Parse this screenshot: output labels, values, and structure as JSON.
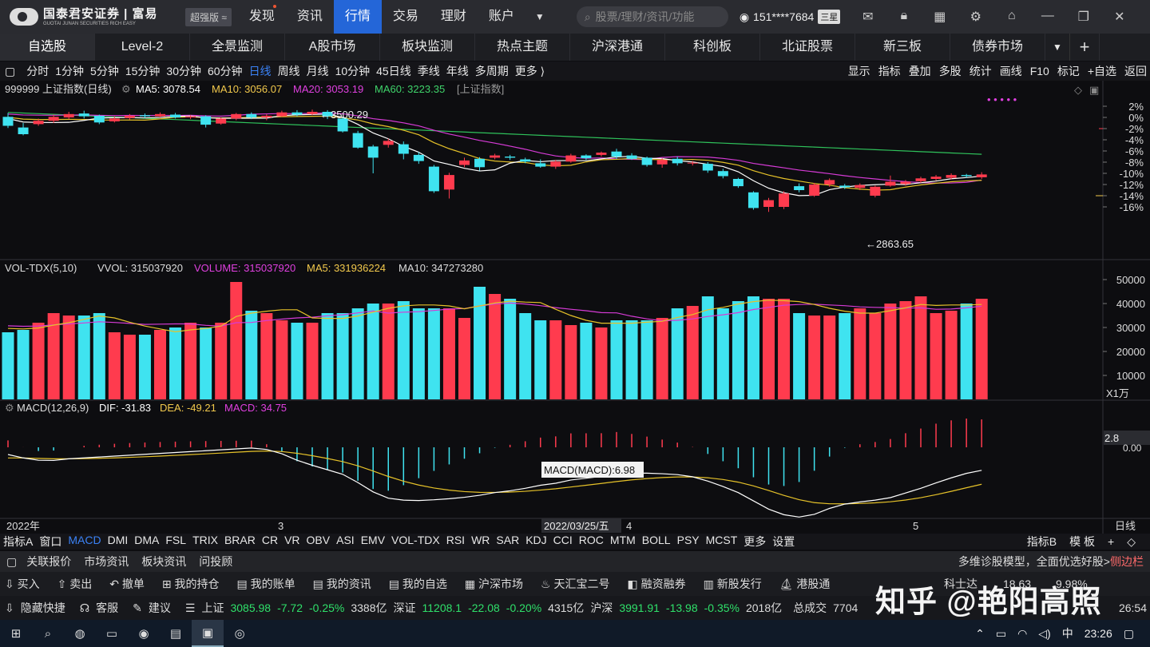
{
  "topbar": {
    "logo_cn": "国泰君安证券 | 富易",
    "logo_en": "GUOTAI JUNAN SECURITIES  RICH EASY",
    "edition": "超强版 ≈",
    "nav": [
      "发现",
      "资讯",
      "行情",
      "交易",
      "理财",
      "账户"
    ],
    "active_nav": 2,
    "search_placeholder": "股票/理财/资讯/功能",
    "user": "151****7684",
    "star": "三星"
  },
  "tabs": [
    "自选股",
    "Level-2",
    "全景监测",
    "A股市场",
    "板块监测",
    "热点主题",
    "沪深港通",
    "科创板",
    "北证股票",
    "新三板",
    "债券市场"
  ],
  "periods": [
    "分时",
    "1分钟",
    "5分钟",
    "15分钟",
    "30分钟",
    "60分钟",
    "日线",
    "周线",
    "月线",
    "10分钟",
    "45日线",
    "季线",
    "年线",
    "多周期",
    "更多 ⟩"
  ],
  "active_period": 6,
  "right_tools": [
    "显示",
    "指标",
    "叠加",
    "多股",
    "统计",
    "画线",
    "F10",
    "标记",
    "+自选",
    "返回"
  ],
  "kline": {
    "legend_code": "999999 上证指数(日线)",
    "ma5": "MA5: 3078.54",
    "ma10": "MA10: 3056.07",
    "ma20": "MA20: 3053.19",
    "ma60": "MA60: 3223.35",
    "tag": "[上证指数]",
    "high_label": "3500.29",
    "low_label": "2863.65",
    "yticks": [
      "2%",
      "0%",
      "-2%",
      "-4%",
      "-6%",
      "-8%",
      "-10%",
      "-12%",
      "-14%",
      "-16%"
    ]
  },
  "volume": {
    "legend": "VOL-TDX(5,10)",
    "vvol": "VVOL: 315037920",
    "volume": "VOLUME: 315037920",
    "ma5": "MA5: 331936224",
    "ma10": "MA10: 347273280",
    "yticks": [
      "50000",
      "40000",
      "30000",
      "20000",
      "10000"
    ],
    "unit": "X1万"
  },
  "macd": {
    "legend": "MACD(12,26,9)",
    "dif": "DIF: -31.83",
    "dea": "DEA: -49.21",
    "macd": "MACD: 34.75",
    "tip": "MACD(MACD):6.98",
    "right_value": "2.8",
    "zero_label": "0.00"
  },
  "xaxis": {
    "year": "2022年",
    "m3": "3",
    "date": "2022/03/25/五",
    "m4": "4",
    "m5": "5",
    "period": "日线"
  },
  "bottom_tabs": [
    "指标A",
    "窗口",
    "MACD",
    "DMI",
    "DMA",
    "FSL",
    "TRIX",
    "BRAR",
    "CR",
    "VR",
    "OBV",
    "ASI",
    "EMV",
    "VOL-TDX",
    "RSI",
    "WR",
    "SAR",
    "KDJ",
    "CCI",
    "ROC",
    "MTM",
    "BOLL",
    "PSY",
    "MCST",
    "更多",
    "设置"
  ],
  "bottom_right": [
    "指标B",
    "模 板"
  ],
  "rowA": [
    "关联报价",
    "市场资讯",
    "板块资讯",
    "问投顾"
  ],
  "rowA_promo": "多维诊股模型，全面优选好股>",
  "rowA_side": "侧边栏",
  "rowB": [
    "买入",
    "卖出",
    "撤单",
    "我的持仓",
    "我的账单",
    "我的资讯",
    "我的自选",
    "沪深市场",
    "天汇宝二号",
    "融资融券",
    "新股发行",
    "港股通"
  ],
  "rowB_stock": [
    "科士达",
    "18.63",
    "9.98%"
  ],
  "status": {
    "hide": "隐藏快捷",
    "service": "客服",
    "suggest": "建议",
    "sh": [
      "上证",
      "3085.98",
      "-7.72",
      "-0.25%",
      "3388亿"
    ],
    "sz": [
      "深证",
      "11208.1",
      "-22.08",
      "-0.20%",
      "4315亿"
    ],
    "hs": [
      "沪深",
      "3991.91",
      "-13.98",
      "-0.35%",
      "2018亿"
    ],
    "total": "总成交",
    "total_val": "7704",
    "time": "26:54"
  },
  "taskbar": {
    "time": "23:26",
    "ime": "中"
  },
  "watermark": "知乎 @艳阳高照"
}
